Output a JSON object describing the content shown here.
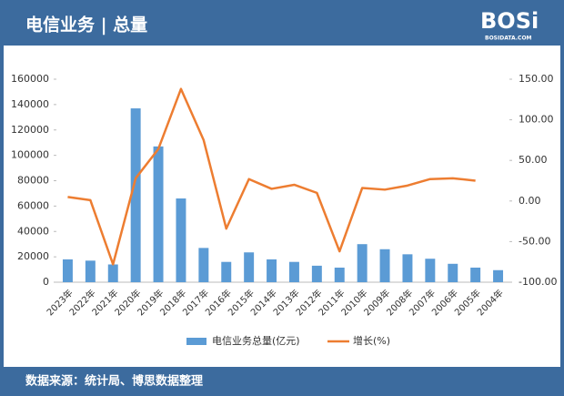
{
  "header": {
    "title": "电信业务 | 总量",
    "logo": "BOSi",
    "logo_sub": "BOSIDATA.COM"
  },
  "chart_data": {
    "type": "combo",
    "categories": [
      "2023年",
      "2022年",
      "2021年",
      "2020年",
      "2019年",
      "2018年",
      "2017年",
      "2016年",
      "2015年",
      "2014年",
      "2013年",
      "2012年",
      "2011年",
      "2010年",
      "2009年",
      "2008年",
      "2007年",
      "2006年",
      "2005年",
      "2004年"
    ],
    "series": [
      {
        "name": "电信业务总量(亿元)",
        "type": "bar",
        "color": "#5b9bd5",
        "axis": "y",
        "values": [
          18000,
          17000,
          14000,
          137000,
          107000,
          66000,
          27000,
          16000,
          23500,
          18000,
          16000,
          13000,
          11500,
          30000,
          26000,
          22000,
          18500,
          14500,
          11500,
          9500
        ]
      },
      {
        "name": "增长(%)",
        "type": "line",
        "color": "#ed7d31",
        "axis": "y2",
        "values": [
          5,
          1,
          -78,
          28,
          64,
          138,
          75,
          -34,
          27,
          15,
          20,
          10,
          -62,
          16,
          14,
          19,
          27,
          28,
          25,
          null
        ]
      }
    ],
    "ylim": [
      0,
      160000
    ],
    "yticks": [
      0,
      20000,
      40000,
      60000,
      80000,
      100000,
      120000,
      140000,
      160000
    ],
    "y2lim": [
      -100,
      150
    ],
    "y2ticks": [
      {
        "value": -100,
        "label": "-100.00"
      },
      {
        "value": -50,
        "label": "-50.00"
      },
      {
        "value": 0,
        "label": "0.00"
      },
      {
        "value": 50,
        "label": "50.00"
      },
      {
        "value": 100,
        "label": "100.00"
      },
      {
        "value": 150,
        "label": "150.00"
      }
    ],
    "legend": "bottom"
  },
  "footer": {
    "source": "数据来源：统计局、博思数据整理"
  }
}
